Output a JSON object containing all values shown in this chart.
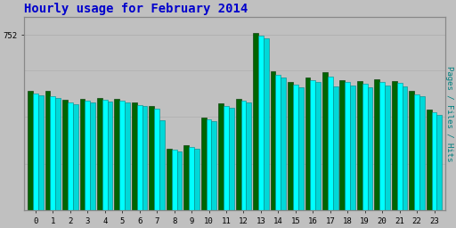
{
  "title": "Hourly usage for February 2014",
  "title_color": "#0000cc",
  "title_fontsize": 10,
  "background_color": "#c0c0c0",
  "plot_bg_color": "#c0c0c0",
  "hours": [
    0,
    1,
    2,
    3,
    4,
    5,
    6,
    7,
    8,
    9,
    10,
    11,
    12,
    13,
    14,
    15,
    16,
    17,
    18,
    19,
    20,
    21,
    22,
    23
  ],
  "hits": [
    500,
    488,
    462,
    468,
    472,
    468,
    452,
    435,
    258,
    272,
    388,
    448,
    468,
    748,
    582,
    538,
    558,
    572,
    548,
    542,
    548,
    545,
    498,
    418
  ],
  "files": [
    492,
    480,
    455,
    460,
    465,
    460,
    445,
    385,
    250,
    265,
    380,
    440,
    460,
    738,
    570,
    528,
    548,
    530,
    535,
    528,
    535,
    530,
    488,
    408
  ],
  "pages": [
    510,
    510,
    472,
    478,
    482,
    478,
    462,
    445,
    265,
    280,
    398,
    458,
    478,
    758,
    595,
    548,
    568,
    590,
    558,
    555,
    560,
    555,
    510,
    430
  ],
  "ymax": 830,
  "ytick_label": "752",
  "ytick_value": 752,
  "ylabel": "Pages / Files / Hits",
  "hits_color": "#00ffff",
  "files_color": "#00d8d8",
  "pages_color": "#006400",
  "hits_edge": "#008888",
  "pages_edge": "#003300",
  "bar_width": 0.3,
  "font_family": "monospace",
  "grid_color": "#aaaaaa",
  "spine_color": "#888888",
  "tick_color": "#000000",
  "right_label_color": "#008080"
}
